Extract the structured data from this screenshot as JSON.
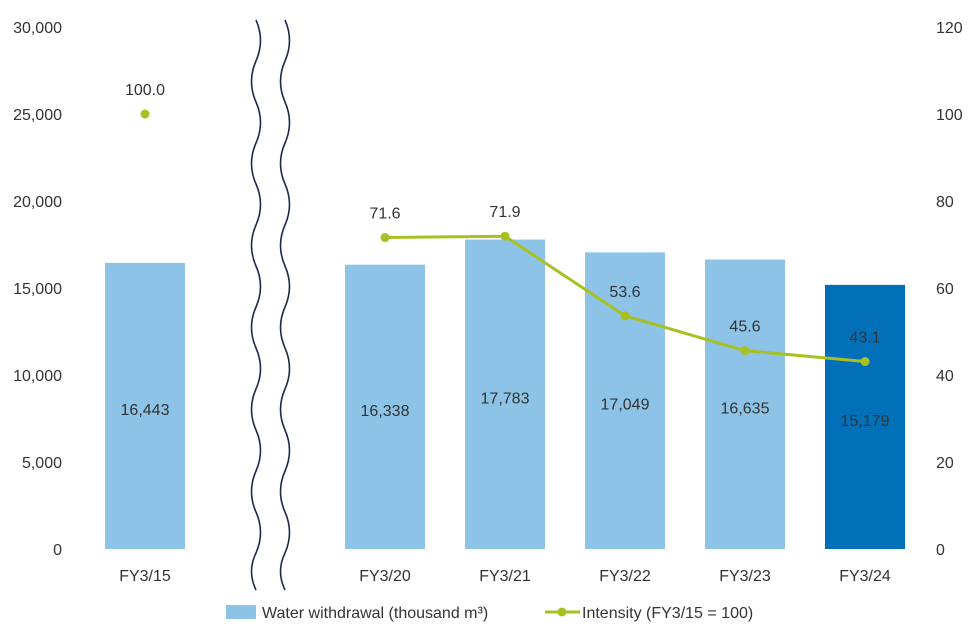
{
  "chart_data": {
    "type": "bar",
    "categories": [
      "FY3/15",
      "FY3/20",
      "FY3/21",
      "FY3/22",
      "FY3/23",
      "FY3/24"
    ],
    "series": [
      {
        "name": "Water withdrawal (thousand m³)",
        "type": "bar",
        "axis": "left",
        "values": [
          16443,
          16338,
          17783,
          17049,
          16635,
          15179
        ],
        "labels": [
          "16,443",
          "16,338",
          "17,783",
          "17,049",
          "16,635",
          "15,179"
        ]
      },
      {
        "name": "Intensity (FY3/15 = 100)",
        "type": "line",
        "axis": "right",
        "values": [
          100.0,
          71.6,
          71.9,
          53.6,
          45.6,
          43.1
        ],
        "labels": [
          "100.0",
          "71.6",
          "71.9",
          "53.6",
          "45.6",
          "43.1"
        ]
      }
    ],
    "y_left": {
      "lim": [
        0,
        30000
      ],
      "ticks": [
        0,
        5000,
        10000,
        15000,
        20000,
        25000,
        30000
      ],
      "tick_labels": [
        "0",
        "5,000",
        "10,000",
        "15,000",
        "20,000",
        "25,000",
        "30,000"
      ]
    },
    "y_right": {
      "lim": [
        0,
        120
      ],
      "ticks": [
        0,
        20,
        40,
        60,
        80,
        100,
        120
      ],
      "tick_labels": [
        "0",
        "20",
        "40",
        "60",
        "80",
        "100",
        "120"
      ]
    },
    "axis_break_after_index": 0,
    "highlight_index": 5,
    "legend": {
      "position": "bottom-center",
      "items": [
        "Water withdrawal (thousand m³)",
        "Intensity (FY3/15 = 100)"
      ]
    },
    "grid": false,
    "colors": {
      "bar": "#8cc3e6",
      "bar_highlight": "#0270b8",
      "line": "#a8c022",
      "text": "#333333",
      "break_line": "#1b2a4a"
    }
  }
}
